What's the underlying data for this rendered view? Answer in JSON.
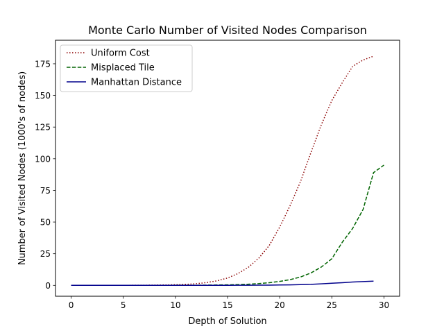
{
  "chart_data": {
    "type": "line",
    "title": "Monte Carlo Number of Visited Nodes Comparison",
    "xlabel": "Depth of Solution",
    "ylabel": "Number of Visited Nodes (1000's of nodes)",
    "xlim": [
      -1.5,
      31.5
    ],
    "ylim": [
      -8.6,
      193.6
    ],
    "xticks": [
      0,
      5,
      10,
      15,
      20,
      25,
      30
    ],
    "yticks": [
      0,
      25,
      50,
      75,
      100,
      125,
      150,
      175
    ],
    "grid": false,
    "legend_position": "upper-left",
    "series": [
      {
        "name": "Uniform Cost",
        "color": "#8b0000",
        "style": "dotted",
        "x": [
          0,
          1,
          2,
          3,
          4,
          5,
          6,
          7,
          8,
          9,
          10,
          11,
          12,
          13,
          14,
          15,
          16,
          17,
          18,
          19,
          20,
          21,
          22,
          23,
          24,
          25,
          26,
          27,
          28,
          29
        ],
        "y": [
          0,
          0,
          0,
          0,
          0,
          0,
          0.1,
          0.1,
          0.2,
          0.3,
          0.5,
          0.8,
          1.3,
          2.2,
          3.6,
          5.8,
          9.3,
          14.3,
          21.5,
          31.5,
          46,
          63,
          82,
          105,
          127,
          146,
          160,
          173,
          178,
          181
        ]
      },
      {
        "name": "Misplaced Tile",
        "color": "#006400",
        "style": "dashed",
        "x": [
          0,
          1,
          2,
          3,
          4,
          5,
          6,
          7,
          8,
          9,
          10,
          11,
          12,
          13,
          14,
          15,
          16,
          17,
          18,
          19,
          20,
          21,
          22,
          23,
          24,
          25,
          26,
          27,
          28,
          29,
          30
        ],
        "y": [
          0,
          0,
          0,
          0,
          0,
          0,
          0,
          0,
          0,
          0,
          0.1,
          0.1,
          0.1,
          0.2,
          0.3,
          0.4,
          0.6,
          0.9,
          1.4,
          2.1,
          3.1,
          4.5,
          6.6,
          9.8,
          14.5,
          21,
          34,
          45,
          60,
          89,
          95
        ]
      },
      {
        "name": "Manhattan Distance",
        "color": "#00008b",
        "style": "solid",
        "x": [
          0,
          1,
          2,
          3,
          4,
          5,
          6,
          7,
          8,
          9,
          10,
          11,
          12,
          13,
          14,
          15,
          16,
          17,
          18,
          19,
          20,
          21,
          22,
          23,
          24,
          25,
          26,
          27,
          28,
          29
        ],
        "y": [
          0,
          0,
          0,
          0,
          0,
          0,
          0,
          0,
          0,
          0,
          0,
          0,
          0,
          0,
          0,
          0.05,
          0.1,
          0.1,
          0.15,
          0.2,
          0.3,
          0.4,
          0.6,
          0.8,
          1.2,
          1.7,
          2.1,
          2.6,
          3.0,
          3.3
        ]
      }
    ]
  }
}
